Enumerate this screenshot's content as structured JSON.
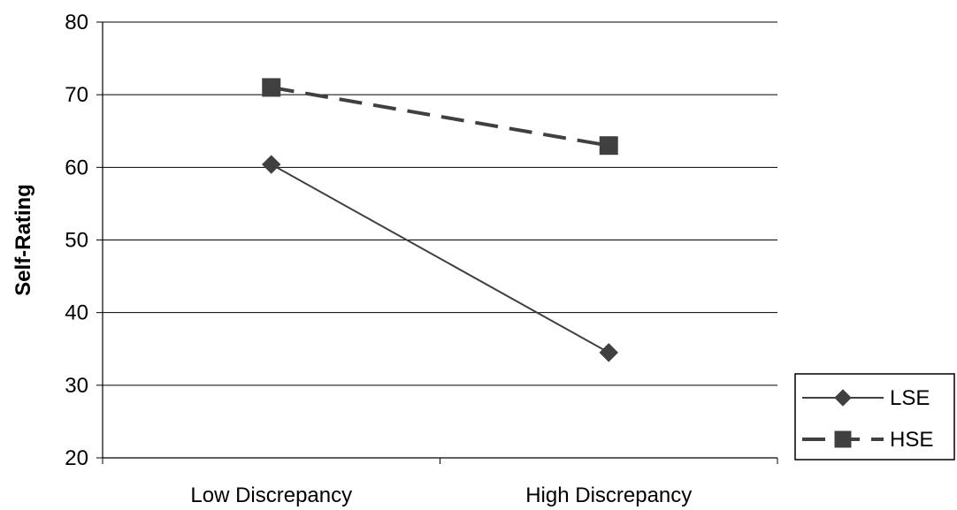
{
  "chart_data": {
    "type": "line",
    "categories": [
      "Low Discrepancy",
      "High Discrepancy"
    ],
    "ylabel": "Self-Rating",
    "xlabel": "",
    "ylim": [
      20,
      80
    ],
    "yticks": [
      20,
      30,
      40,
      50,
      60,
      70,
      80
    ],
    "ytick_labels": [
      "20",
      "30",
      "40",
      "50",
      "60",
      "70",
      "80"
    ],
    "grid": true,
    "legend_position": "bottom-right",
    "series": [
      {
        "name": "LSE",
        "values": [
          60.4,
          34.5
        ],
        "marker": "diamond",
        "line_style": "solid",
        "color": "#404040"
      },
      {
        "name": "HSE",
        "values": [
          71.0,
          63.0
        ],
        "marker": "square",
        "line_style": "dashed",
        "color": "#404040"
      }
    ]
  }
}
